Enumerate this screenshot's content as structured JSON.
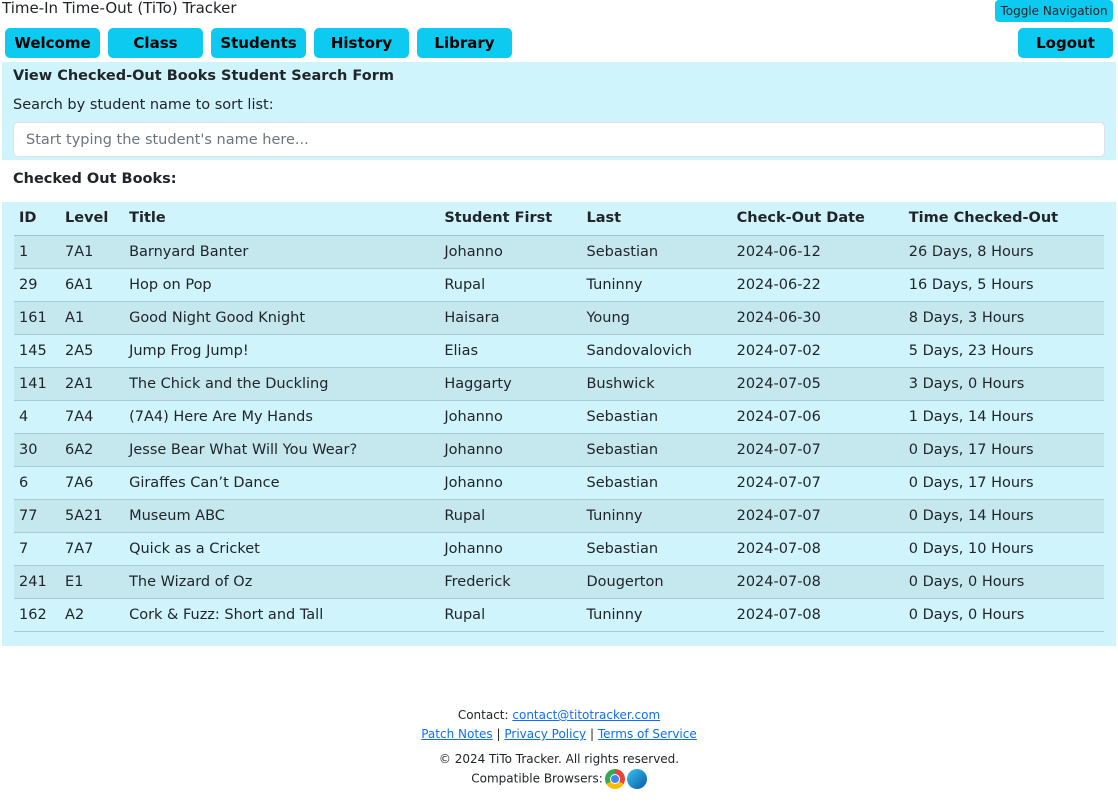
{
  "app_title": "Time-In Time-Out (TiTo) Tracker",
  "nav": {
    "toggle": "Toggle Navigation",
    "items": [
      "Welcome",
      "Class",
      "Students",
      "History",
      "Library"
    ],
    "logout": "Logout"
  },
  "search": {
    "heading": "View Checked-Out Books Student Search Form",
    "label": "Search by student name to sort list:",
    "placeholder": "Start typing the student's name here...",
    "value": ""
  },
  "table": {
    "caption": "Checked Out Books:",
    "headers": [
      "ID",
      "Level",
      "Title",
      "Student First",
      "Last",
      "Check-Out Date",
      "Time Checked-Out"
    ],
    "rows": [
      [
        "1",
        "7A1",
        "Barnyard Banter",
        "Johanno",
        "Sebastian",
        "2024-06-12",
        "26 Days, 8 Hours"
      ],
      [
        "29",
        "6A1",
        "Hop on Pop",
        "Rupal",
        "Tuninny",
        "2024-06-22",
        "16 Days, 5 Hours"
      ],
      [
        "161",
        "A1",
        "Good Night Good Knight",
        "Haisara",
        "Young",
        "2024-06-30",
        "8 Days, 3 Hours"
      ],
      [
        "145",
        "2A5",
        "Jump Frog Jump!",
        "Elias",
        "Sandovalovich",
        "2024-07-02",
        "5 Days, 23 Hours"
      ],
      [
        "141",
        "2A1",
        "The Chick and the Duckling",
        "Haggarty",
        "Bushwick",
        "2024-07-05",
        "3 Days, 0 Hours"
      ],
      [
        "4",
        "7A4",
        "(7A4) Here Are My Hands",
        "Johanno",
        "Sebastian",
        "2024-07-06",
        "1 Days, 14 Hours"
      ],
      [
        "30",
        "6A2",
        "Jesse Bear What Will You Wear?",
        "Johanno",
        "Sebastian",
        "2024-07-07",
        "0 Days, 17 Hours"
      ],
      [
        "6",
        "7A6",
        "Giraffes Can’t Dance",
        "Johanno",
        "Sebastian",
        "2024-07-07",
        "0 Days, 17 Hours"
      ],
      [
        "77",
        "5A21",
        "Museum ABC",
        "Rupal",
        "Tuninny",
        "2024-07-07",
        "0 Days, 14 Hours"
      ],
      [
        "7",
        "7A7",
        "Quick as a Cricket",
        "Johanno",
        "Sebastian",
        "2024-07-08",
        "0 Days, 10 Hours"
      ],
      [
        "241",
        "E1",
        "The Wizard of Oz",
        "Frederick",
        "Dougerton",
        "2024-07-08",
        "0 Days, 0 Hours"
      ],
      [
        "162",
        "A2",
        "Cork & Fuzz: Short and Tall",
        "Rupal",
        "Tuninny",
        "2024-07-08",
        "0 Days, 0 Hours"
      ]
    ]
  },
  "footer": {
    "contact_label": "Contact:",
    "contact_email": "contact@titotracker.com",
    "patch_notes": "Patch Notes",
    "privacy": "Privacy Policy",
    "terms": "Terms of Service",
    "sep": "|",
    "copyright": "© 2024 TiTo Tracker. All rights reserved.",
    "browsers_label": "Compatible Browsers:",
    "browser_icons": [
      "chrome-icon",
      "edge-icon"
    ]
  },
  "colors": {
    "accent": "#0dcaf0",
    "panel": "#cff4fc",
    "stripe": "#c5e8ef",
    "link": "#0d6efd"
  }
}
